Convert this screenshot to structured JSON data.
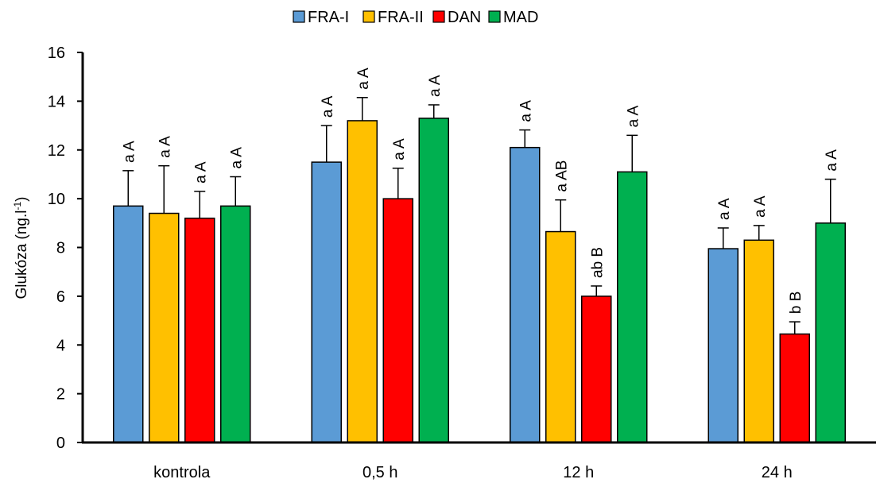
{
  "chart_data": {
    "type": "bar",
    "title": "",
    "xlabel": "",
    "ylabel": "Glukóza (ng.l",
    "ylabel_sup": "-1",
    "ylabel_end": ")",
    "ylim": [
      0,
      16
    ],
    "yticks": [
      0,
      2,
      4,
      6,
      8,
      10,
      12,
      14,
      16
    ],
    "grid": false,
    "legend_position": "top-center",
    "categories": [
      "kontrola",
      "0,5 h",
      "12 h",
      "24 h"
    ],
    "series": [
      {
        "name": "FRA-I",
        "color": "#5B9BD5",
        "values": [
          9.7,
          11.5,
          12.1,
          7.95
        ],
        "errors": [
          1.45,
          1.5,
          0.72,
          0.85
        ],
        "labels": [
          "a A",
          "a A",
          "a A",
          "a A"
        ]
      },
      {
        "name": "FRA-II",
        "color": "#FFC000",
        "values": [
          9.4,
          13.2,
          8.65,
          8.3
        ],
        "errors": [
          1.95,
          0.95,
          1.3,
          0.6
        ],
        "labels": [
          "a A",
          "a A",
          "a AB",
          "a A"
        ]
      },
      {
        "name": "DAN",
        "color": "#FF0000",
        "values": [
          9.2,
          10.0,
          6.0,
          4.45
        ],
        "errors": [
          1.1,
          1.25,
          0.42,
          0.5
        ],
        "labels": [
          "a A",
          "a A",
          "ab B",
          "b B"
        ]
      },
      {
        "name": "MAD",
        "color": "#00B050",
        "values": [
          9.7,
          13.3,
          11.1,
          9.0
        ],
        "errors": [
          1.2,
          0.55,
          1.5,
          1.8
        ],
        "labels": [
          "a A",
          "a A",
          "a A",
          "a A"
        ]
      }
    ]
  }
}
